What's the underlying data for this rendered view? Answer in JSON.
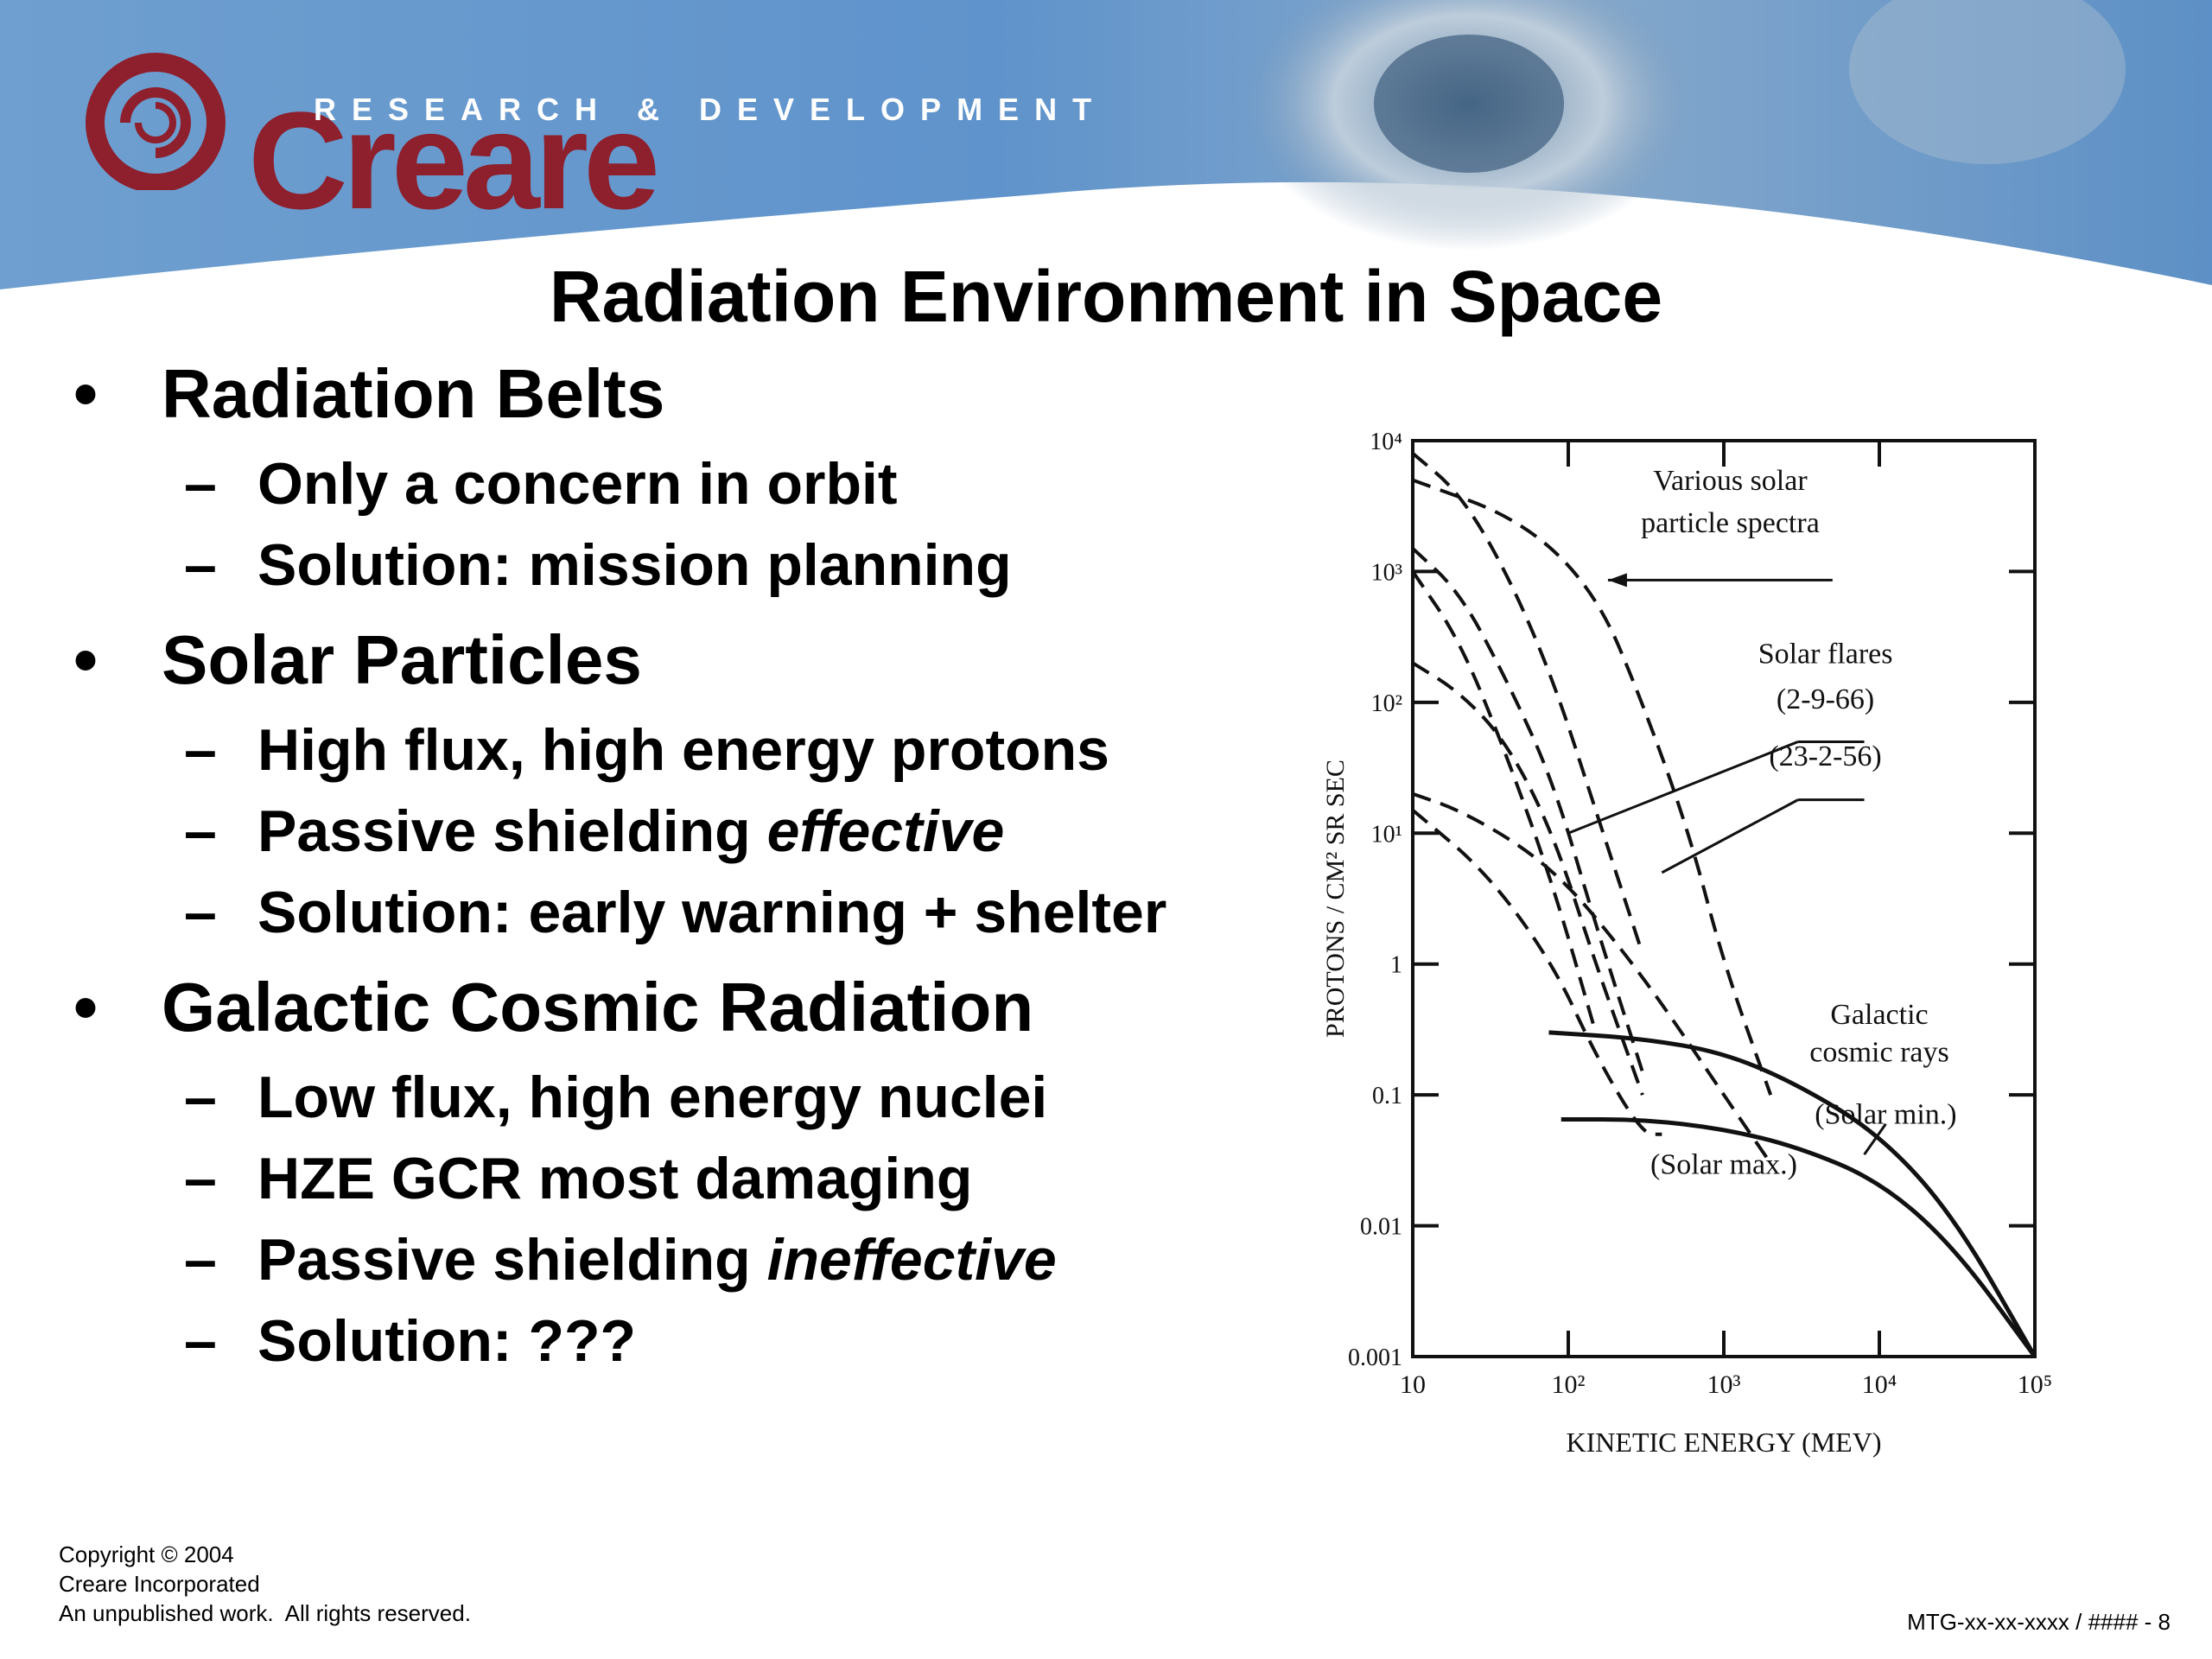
{
  "header": {
    "brand": "Creare",
    "tagline": "RESEARCH & DEVELOPMENT"
  },
  "title": "Radiation Environment in Space",
  "bullets": [
    {
      "text": "Radiation Belts",
      "subitems": [
        {
          "text": "Only a concern in orbit"
        },
        {
          "text": "Solution: mission planning"
        }
      ]
    },
    {
      "text": "Solar Particles",
      "subitems": [
        {
          "text": "High flux, high energy protons"
        },
        {
          "pre": "Passive shielding ",
          "em": "effective"
        },
        {
          "text": "Solution: early warning + shelter"
        }
      ]
    },
    {
      "text": "Galactic Cosmic Radiation",
      "subitems": [
        {
          "text": "Low flux, high energy nuclei"
        },
        {
          "text": "HZE GCR most damaging"
        },
        {
          "pre": "Passive shielding ",
          "em": "ineffective"
        },
        {
          "text": "Solution: ???"
        }
      ]
    }
  ],
  "chart_data": {
    "type": "line",
    "xlabel": "KINETIC ENERGY (MEV)",
    "ylabel": "PROTONS / CM² SR SEC",
    "x_scale": "log",
    "y_scale": "log",
    "xlim": [
      10,
      100000
    ],
    "ylim": [
      0.001,
      10000
    ],
    "x_tick_values": [
      10,
      100,
      1000,
      10000,
      100000
    ],
    "x_tick_labels": [
      "10",
      "10²",
      "10³",
      "10⁴",
      "10⁵"
    ],
    "y_tick_values": [
      0.001,
      0.01,
      0.1,
      1,
      10,
      100,
      1000,
      10000
    ],
    "y_tick_labels": [
      "0.001",
      "0.01",
      "0.1",
      "1",
      "10¹",
      "10²",
      "10³",
      "10⁴"
    ],
    "annotations": [
      {
        "text": "Various solar",
        "x": 1100,
        "y": 4200
      },
      {
        "text": "particle spectra",
        "x": 1100,
        "y": 2000
      },
      {
        "text": "Solar flares",
        "x": 4500,
        "y": 200
      },
      {
        "text": "(2-9-66)",
        "x": 4500,
        "y": 90
      },
      {
        "text": "(23-2-56)",
        "x": 4500,
        "y": 33
      },
      {
        "text": "Galactic",
        "x": 10000,
        "y": 0.35
      },
      {
        "text": "cosmic rays",
        "x": 10000,
        "y": 0.18
      },
      {
        "text": "(Solar min.)",
        "x": 11000,
        "y": 0.06
      },
      {
        "text": "(Solar max.)",
        "x": 1000,
        "y": 0.025
      }
    ],
    "series": [
      {
        "style": "solid",
        "x": [
          75,
          300,
          1000,
          3000,
          10000,
          30000,
          100000
        ],
        "y": [
          0.3,
          0.27,
          0.21,
          0.12,
          0.05,
          0.012,
          0.001
        ]
      },
      {
        "style": "solid",
        "x": [
          90,
          300,
          1000,
          3000,
          10000,
          30000,
          100000
        ],
        "y": [
          0.065,
          0.065,
          0.055,
          0.04,
          0.022,
          0.007,
          0.001
        ]
      },
      {
        "style": "dashed",
        "x": [
          10,
          20,
          40,
          80,
          150,
          300
        ],
        "y": [
          8000,
          4000,
          1000,
          150,
          15,
          1.2
        ]
      },
      {
        "style": "dashed",
        "x": [
          10,
          20,
          40,
          80,
          150,
          300
        ],
        "y": [
          1500,
          700,
          150,
          25,
          2,
          0.15
        ]
      },
      {
        "style": "dashed",
        "x": [
          10,
          20,
          40,
          80,
          150
        ],
        "y": [
          1000,
          300,
          40,
          4,
          0.3
        ]
      },
      {
        "style": "dashed",
        "x": [
          10,
          20,
          40,
          80,
          150,
          300
        ],
        "y": [
          200,
          120,
          50,
          10,
          1,
          0.1
        ]
      },
      {
        "style": "dashed",
        "x": [
          10,
          20,
          50,
          100,
          200,
          400,
          1000,
          2000
        ],
        "y": [
          20,
          15,
          8,
          4,
          1.5,
          0.5,
          0.1,
          0.03
        ]
      },
      {
        "style": "dashed",
        "x": [
          10,
          30,
          80,
          150,
          300,
          400
        ],
        "y": [
          15,
          5,
          1,
          0.2,
          0.05,
          0.05
        ]
      },
      {
        "style": "dashed",
        "x": [
          10,
          50,
          150,
          300,
          600,
          1000,
          2000
        ],
        "y": [
          5000,
          2500,
          700,
          100,
          10,
          1,
          0.1
        ]
      }
    ]
  }
}
